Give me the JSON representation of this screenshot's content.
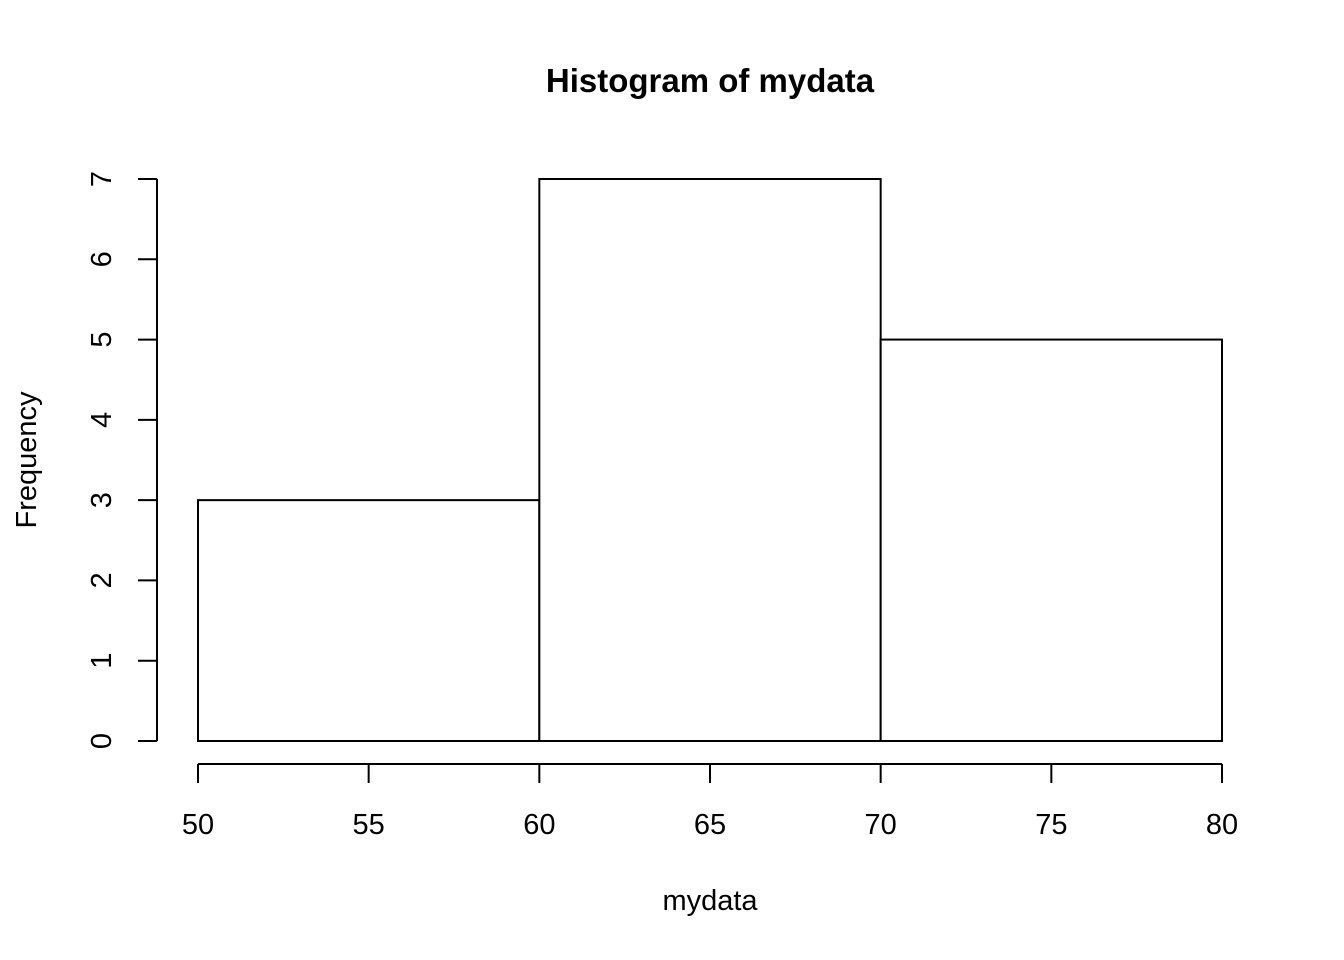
{
  "chart_data": {
    "type": "bar",
    "title": "Histogram of mydata",
    "xlabel": "mydata",
    "ylabel": "Frequency",
    "bins": [
      {
        "from": 50,
        "to": 60,
        "count": 3
      },
      {
        "from": 60,
        "to": 70,
        "count": 7
      },
      {
        "from": 70,
        "to": 80,
        "count": 5
      }
    ],
    "xlim": [
      50,
      80
    ],
    "ylim": [
      0,
      7
    ],
    "x_ticks": [
      "50",
      "55",
      "60",
      "65",
      "70",
      "75",
      "80"
    ],
    "y_ticks": [
      "0",
      "1",
      "2",
      "3",
      "4",
      "5",
      "6",
      "7"
    ],
    "colors": {
      "bar_fill": "#ffffff",
      "bar_stroke": "#000000"
    },
    "grid": false
  }
}
